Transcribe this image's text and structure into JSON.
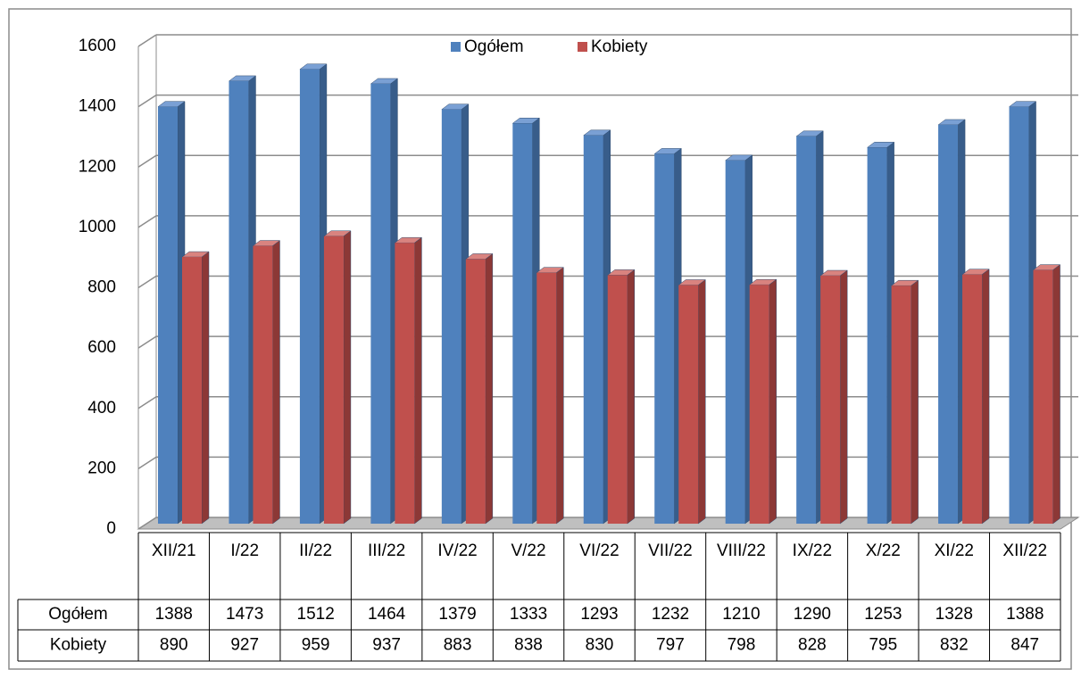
{
  "chart_data": {
    "type": "bar3d",
    "categories": [
      "XII/21",
      "I/22",
      "II/22",
      "III/22",
      "IV/22",
      "V/22",
      "VI/22",
      "VII/22",
      "VIII/22",
      "IX/22",
      "X/22",
      "XI/22",
      "XII/22"
    ],
    "series": [
      {
        "name": "Ogółem",
        "color": "#4f81bd",
        "values": [
          1388,
          1473,
          1512,
          1464,
          1379,
          1333,
          1293,
          1232,
          1210,
          1290,
          1253,
          1328,
          1388
        ]
      },
      {
        "name": "Kobiety",
        "color": "#c0504d",
        "values": [
          890,
          927,
          959,
          937,
          883,
          838,
          830,
          797,
          798,
          828,
          795,
          832,
          847
        ]
      }
    ],
    "ylim": [
      0,
      1600
    ],
    "yticks": [
      0,
      200,
      400,
      600,
      800,
      1000,
      1200,
      1400,
      1600
    ],
    "grid": true,
    "legend": "top"
  }
}
